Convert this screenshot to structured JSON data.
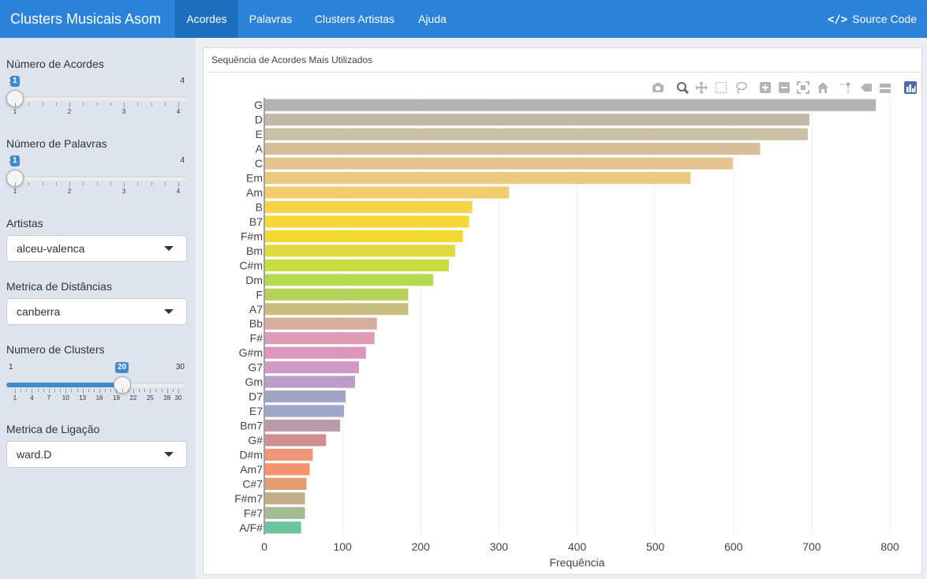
{
  "app": {
    "title": "Clusters Musicais Asom",
    "tabs": [
      "Acordes",
      "Palavras",
      "Clusters Artistas",
      "Ajuda"
    ],
    "active_tab": 0,
    "source_label": "Source Code"
  },
  "sidebar": {
    "acordes": {
      "label": "Número de Acordes",
      "min": 1,
      "max": 4,
      "value": 1,
      "ticks": [
        1,
        2,
        3,
        4
      ]
    },
    "palavras": {
      "label": "Número de Palavras",
      "min": 1,
      "max": 4,
      "value": 1,
      "ticks": [
        1,
        2,
        3,
        4
      ]
    },
    "artistas": {
      "label": "Artistas",
      "value": "alceu-valenca"
    },
    "distancia": {
      "label": "Metrica de Distâncias",
      "value": "canberra"
    },
    "clusters": {
      "label": "Numero de Clusters",
      "min": 1,
      "max": 30,
      "value": 20,
      "ticks": [
        1,
        4,
        7,
        10,
        13,
        16,
        19,
        22,
        25,
        28,
        30
      ]
    },
    "ligacao": {
      "label": "Metrica de Ligação",
      "value": "ward.D"
    }
  },
  "panel": {
    "title": "Sequência de Acordes Mais Utilizados"
  },
  "chart_data": {
    "type": "bar",
    "orientation": "horizontal",
    "title": "",
    "xlabel": "Frequência",
    "ylabel": "",
    "xlim": [
      0,
      800
    ],
    "xticks": [
      0,
      100,
      200,
      300,
      400,
      500,
      600,
      700,
      800
    ],
    "grid": true,
    "categories": [
      "G",
      "D",
      "E",
      "A",
      "C",
      "Em",
      "Am",
      "B",
      "B7",
      "F#m",
      "Bm",
      "C#m",
      "Dm",
      "F",
      "A7",
      "Bb",
      "F#",
      "G#m",
      "G7",
      "Gm",
      "D7",
      "E7",
      "Bm7",
      "G#",
      "D#m",
      "Am7",
      "C#7",
      "F#m7",
      "F#7",
      "A/F#"
    ],
    "values": [
      782,
      697,
      695,
      634,
      599,
      545,
      313,
      266,
      262,
      254,
      244,
      236,
      216,
      184,
      184,
      144,
      141,
      130,
      121,
      116,
      104,
      102,
      97,
      79,
      62,
      58,
      54,
      52,
      52,
      47
    ],
    "colors": [
      "#b3b3b3",
      "#c0b8a8",
      "#cbbfa5",
      "#d6be9a",
      "#e3c48f",
      "#ebc880",
      "#f1cd6e",
      "#f6d449",
      "#f5d83a",
      "#f2d932",
      "#e1da3c",
      "#cadd3f",
      "#b4db4e",
      "#b6d05c",
      "#c7bd7e",
      "#d8ad9e",
      "#e09ab4",
      "#dd95c0",
      "#d199c6",
      "#bb9ec8",
      "#a3a3c8",
      "#9ea8ca",
      "#b99ba8",
      "#d28f8f",
      "#ee967a",
      "#f7936c",
      "#e29d70",
      "#c1ad87",
      "#a2bc91",
      "#6cc49d"
    ]
  },
  "icons": [
    "camera-icon",
    "zoom-icon",
    "pan-icon",
    "box-select-icon",
    "lasso-icon",
    "zoom-in-icon",
    "zoom-out-icon",
    "autoscale-icon",
    "reset-axes-icon",
    "spike-lines-icon",
    "hover-closest-icon",
    "hover-compare-icon",
    "plotly-logo-icon"
  ]
}
